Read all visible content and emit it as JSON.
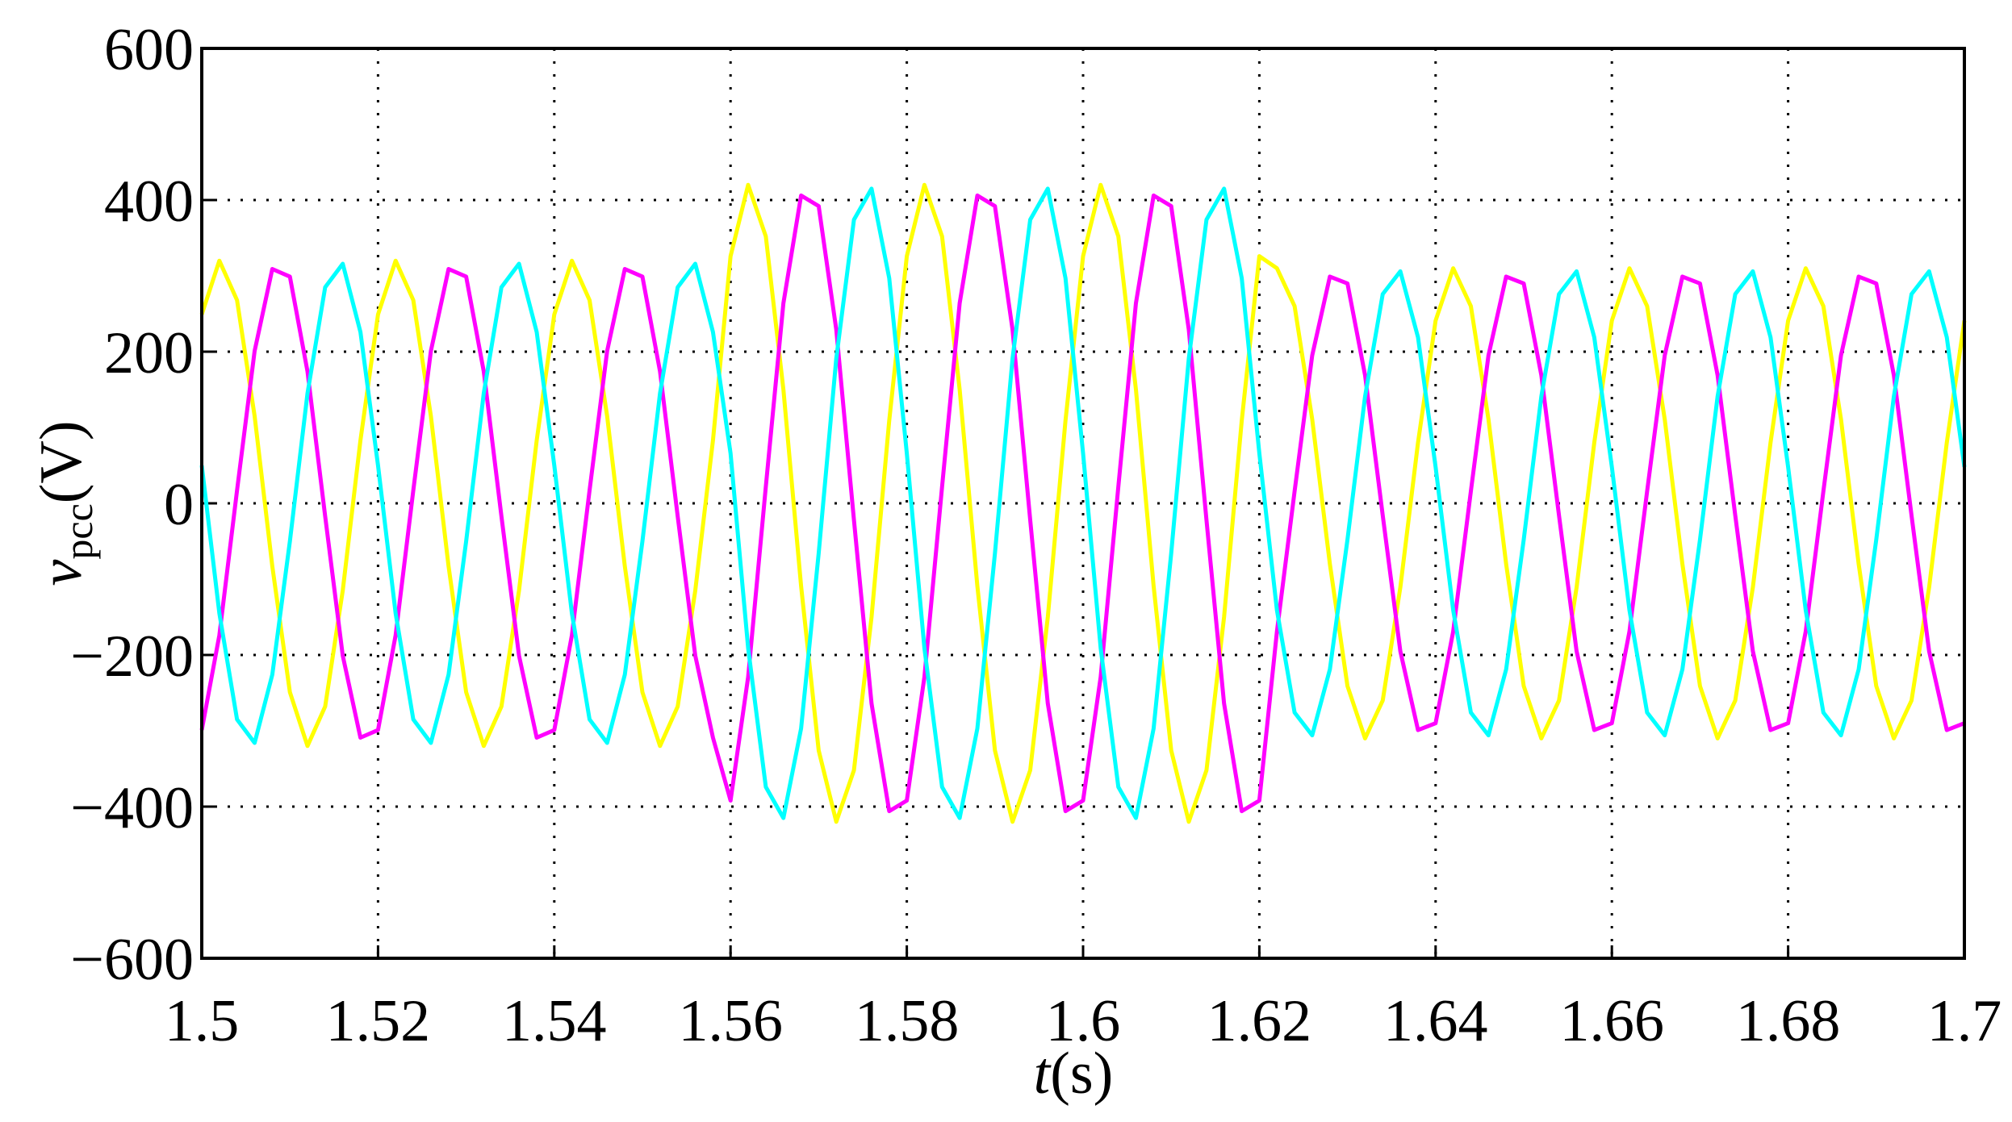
{
  "chart_data": {
    "type": "line",
    "y_label": "v",
    "y_label_sub": "pcc",
    "y_label_unit": "(V)",
    "x_label": "t",
    "x_label_unit": "(s)",
    "xlim": [
      1.5,
      1.7
    ],
    "ylim": [
      -600,
      600
    ],
    "xticks": [
      1.5,
      1.52,
      1.54,
      1.56,
      1.58,
      1.6,
      1.62,
      1.64,
      1.66,
      1.68,
      1.7
    ],
    "yticks": [
      {
        "value": -600,
        "label": "−600"
      },
      {
        "value": -400,
        "label": "−400"
      },
      {
        "value": -200,
        "label": "−200"
      },
      0,
      200,
      400,
      600
    ],
    "grid": true,
    "x": [
      1.5,
      1.502,
      1.504,
      1.506,
      1.508,
      1.51,
      1.512,
      1.514,
      1.516,
      1.518,
      1.52,
      1.522,
      1.524,
      1.526,
      1.528,
      1.53,
      1.532,
      1.534,
      1.536,
      1.538,
      1.54,
      1.542,
      1.544,
      1.546,
      1.548,
      1.55,
      1.552,
      1.554,
      1.556,
      1.558,
      1.56,
      1.562,
      1.564,
      1.566,
      1.568,
      1.57,
      1.572,
      1.574,
      1.576,
      1.578,
      1.58,
      1.582,
      1.584,
      1.586,
      1.588,
      1.59,
      1.592,
      1.594,
      1.596,
      1.598,
      1.6,
      1.602,
      1.604,
      1.606,
      1.608,
      1.61,
      1.612,
      1.614,
      1.616,
      1.618,
      1.62,
      1.622,
      1.624,
      1.626,
      1.628,
      1.63,
      1.632,
      1.634,
      1.636,
      1.638,
      1.64,
      1.642,
      1.644,
      1.646,
      1.648,
      1.65,
      1.652,
      1.654,
      1.656,
      1.658,
      1.66,
      1.662,
      1.664,
      1.666,
      1.668,
      1.67,
      1.672,
      1.674,
      1.676,
      1.678,
      1.68,
      1.682,
      1.684,
      1.686,
      1.688,
      1.69,
      1.692,
      1.694,
      1.696,
      1.698,
      1.7
    ],
    "series": [
      {
        "color": "#ffff00",
        "values": [
          249,
          320,
          268,
          115,
          -83,
          -249,
          -320,
          -268,
          -115,
          83,
          249,
          320,
          268,
          115,
          -83,
          -249,
          -320,
          -268,
          -115,
          83,
          249,
          320,
          268,
          115,
          -83,
          -249,
          -320,
          -268,
          -115,
          83,
          326,
          420,
          352,
          150,
          -109,
          -326,
          -420,
          -352,
          -150,
          109,
          326,
          420,
          352,
          150,
          -109,
          -326,
          -420,
          -352,
          -150,
          109,
          326,
          420,
          352,
          150,
          -109,
          -326,
          -420,
          -352,
          -150,
          109,
          326,
          310,
          260,
          111,
          -80,
          -241,
          -310,
          -260,
          -111,
          80,
          241,
          310,
          260,
          111,
          -80,
          -241,
          -310,
          -260,
          -111,
          80,
          241,
          310,
          260,
          111,
          -80,
          -241,
          -310,
          -260,
          -111,
          80,
          241,
          310,
          260,
          111,
          -80,
          -241,
          -310,
          -260,
          -111,
          80,
          241
        ]
      },
      {
        "color": "#ff00ff",
        "values": [
          -299,
          -174,
          17,
          201,
          309,
          299,
          174,
          -17,
          -201,
          -309,
          -299,
          -174,
          17,
          201,
          309,
          299,
          174,
          -17,
          -201,
          -309,
          -299,
          -174,
          17,
          201,
          309,
          299,
          174,
          -17,
          -201,
          -309,
          -392,
          -229,
          22,
          264,
          406,
          392,
          229,
          -22,
          -264,
          -406,
          -392,
          -229,
          22,
          264,
          406,
          392,
          229,
          -22,
          -264,
          -406,
          -392,
          -229,
          22,
          264,
          406,
          392,
          229,
          -22,
          -264,
          -406,
          -392,
          -169,
          16,
          195,
          299,
          290,
          169,
          -16,
          -195,
          -299,
          -290,
          -169,
          16,
          195,
          299,
          290,
          169,
          -16,
          -195,
          -299,
          -290,
          -169,
          16,
          195,
          299,
          290,
          169,
          -16,
          -195,
          -299,
          -290,
          -169,
          16,
          195,
          299,
          290,
          169,
          -16,
          -195,
          -299,
          -290
        ]
      },
      {
        "color": "#00ffff",
        "values": [
          50,
          -145,
          -285,
          -316,
          -226,
          -50,
          145,
          285,
          316,
          226,
          50,
          -145,
          -285,
          -316,
          -226,
          -50,
          145,
          285,
          316,
          226,
          50,
          -145,
          -285,
          -316,
          -226,
          -50,
          145,
          285,
          316,
          226,
          66,
          -191,
          -374,
          -415,
          -297,
          -66,
          191,
          374,
          415,
          297,
          66,
          -191,
          -374,
          -415,
          -297,
          -66,
          191,
          374,
          415,
          297,
          66,
          -191,
          -374,
          -415,
          -297,
          -66,
          191,
          374,
          415,
          297,
          66,
          -141,
          -276,
          -306,
          -219,
          -48,
          141,
          276,
          306,
          219,
          48,
          -141,
          -276,
          -306,
          -219,
          -48,
          141,
          276,
          306,
          219,
          48,
          -141,
          -276,
          -306,
          -219,
          -48,
          141,
          276,
          306,
          219,
          48,
          -141,
          -276,
          -306,
          -219,
          -48,
          141,
          276,
          306,
          219,
          48
        ]
      }
    ]
  }
}
